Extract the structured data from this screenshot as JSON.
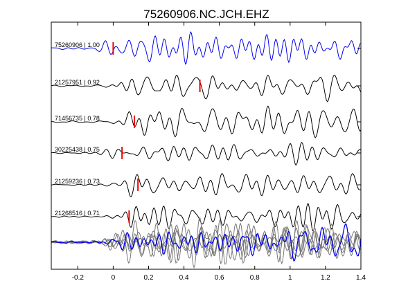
{
  "chart_data": {
    "type": "line",
    "title": "75260906.NC.JCH.EHZ",
    "xlabel": "",
    "ylabel": "",
    "xlim": [
      -0.35,
      1.4
    ],
    "xticks": [
      -0.2,
      0,
      0.2,
      0.4,
      0.6,
      0.8,
      1,
      1.2,
      1.4
    ],
    "xtick_labels": [
      "-0.2",
      "0",
      "0.2",
      "0.4",
      "0.6",
      "0.8",
      "1",
      "1.2",
      "1.4"
    ],
    "grid": false,
    "legend": "none",
    "colors": {
      "reference": "#0000ee",
      "trace": "#000000",
      "stack": "#777777",
      "pick": "#ee0000",
      "axis": "#000000"
    },
    "series": [
      {
        "name": "75260906 | 1.00",
        "label": "75260906 | 1.00",
        "color": "reference",
        "pick_x": 0.0,
        "onset_x": -0.04,
        "seed": 1
      },
      {
        "name": "21257951 | 0.92",
        "label": "21257951 | 0.92",
        "color": "trace",
        "pick_x": 0.49,
        "onset_x": 0.04,
        "seed": 2
      },
      {
        "name": "71456735 | 0.78",
        "label": "71456735 | 0.78",
        "color": "trace",
        "pick_x": 0.12,
        "onset_x": 0.07,
        "seed": 3
      },
      {
        "name": "30225438 | 0.75",
        "label": "30225438 | 0.75",
        "color": "trace",
        "pick_x": 0.05,
        "onset_x": 0.0,
        "seed": 4
      },
      {
        "name": "21259236 | 0.73",
        "label": "21259236 | 0.73",
        "color": "trace",
        "pick_x": 0.14,
        "onset_x": 0.05,
        "seed": 5
      },
      {
        "name": "21268516 | 0.71",
        "label": "21268516 | 0.71",
        "color": "trace",
        "pick_x": 0.09,
        "onset_x": 0.07,
        "seed": 6
      }
    ],
    "stack": {
      "onset_x": 0.02
    }
  }
}
